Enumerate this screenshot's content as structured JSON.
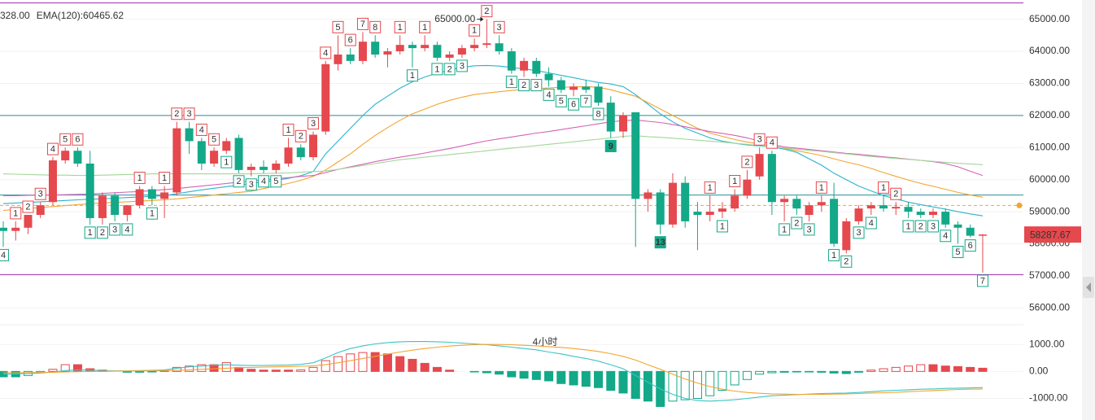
{
  "chart_data": [
    {
      "type": "candlestick",
      "open": [
        58500,
        58400,
        58500,
        58900,
        59300,
        60600,
        60900,
        60500,
        58800,
        59500,
        58900,
        59200,
        59700,
        59400,
        59600,
        61600,
        61200,
        60500,
        60900,
        61300,
        60300,
        60400,
        60300,
        60500,
        61000,
        60700,
        61500,
        63600,
        63900,
        63700,
        64300,
        63900,
        64000,
        64200,
        64100,
        64200,
        63800,
        63900,
        64100,
        64200,
        64250,
        64000,
        63400,
        63700,
        63300,
        63100,
        62800,
        62900,
        62900,
        62400,
        61500,
        62100,
        59400,
        59600,
        58600,
        59900,
        59000,
        58900,
        59000,
        59100,
        59500,
        60100,
        60800,
        59300,
        59400,
        58900,
        59200,
        59400,
        57800,
        58700,
        59100,
        59200,
        59100,
        59150,
        59000,
        58900,
        59000,
        58600,
        58500,
        58250
      ],
      "high": [
        58700,
        58700,
        58900,
        59300,
        60700,
        61000,
        61000,
        60900,
        59600,
        59600,
        59200,
        59800,
        59800,
        59800,
        61800,
        61800,
        61300,
        61000,
        61300,
        61400,
        60500,
        60600,
        60600,
        61300,
        61100,
        61500,
        63700,
        64500,
        64100,
        64600,
        64500,
        64100,
        64500,
        64300,
        64500,
        64300,
        64000,
        64200,
        64400,
        65000,
        64500,
        64100,
        63800,
        63800,
        63500,
        63200,
        63000,
        63100,
        63000,
        62600,
        62100,
        62100,
        59700,
        59700,
        60200,
        60100,
        59300,
        59500,
        59300,
        59700,
        60300,
        61000,
        60900,
        59500,
        59500,
        59300,
        59500,
        59900,
        58800,
        59200,
        59300,
        59500,
        59300,
        59300,
        59100,
        59100,
        59100,
        58700,
        58600,
        58300
      ],
      "low": [
        57900,
        58100,
        58300,
        58800,
        59200,
        60500,
        60400,
        58600,
        58600,
        58700,
        58700,
        59100,
        59200,
        58800,
        59500,
        60800,
        60300,
        60400,
        60800,
        60200,
        60100,
        60200,
        60200,
        60400,
        60600,
        60600,
        61400,
        63400,
        63600,
        63600,
        63800,
        63500,
        63900,
        63500,
        64000,
        63700,
        63700,
        63800,
        64000,
        64100,
        63900,
        63300,
        63200,
        63200,
        62900,
        62700,
        62600,
        62700,
        62300,
        61300,
        61300,
        57900,
        59000,
        58300,
        58500,
        58500,
        57800,
        58700,
        58800,
        59000,
        59400,
        60000,
        58900,
        58700,
        58900,
        58700,
        59000,
        57900,
        57700,
        58600,
        58900,
        59000,
        58900,
        58800,
        58800,
        58800,
        58500,
        58000,
        58200,
        57100
      ],
      "close": [
        58400,
        58500,
        58900,
        59200,
        60600,
        60900,
        60500,
        58800,
        59500,
        58900,
        59200,
        59700,
        59400,
        59600,
        61600,
        61200,
        60500,
        60900,
        61200,
        60300,
        60400,
        60300,
        60500,
        61000,
        60700,
        61400,
        63600,
        63900,
        63700,
        64300,
        63900,
        64000,
        64200,
        64100,
        64200,
        63800,
        63900,
        64100,
        64200,
        64250,
        64000,
        63400,
        63700,
        63300,
        63100,
        62800,
        62900,
        62800,
        62400,
        61500,
        62000,
        59400,
        59600,
        58600,
        59900,
        58700,
        58900,
        59000,
        59100,
        59500,
        60000,
        60800,
        59300,
        59400,
        59100,
        59200,
        59300,
        58000,
        58700,
        59100,
        59200,
        59100,
        59150,
        59000,
        58900,
        59000,
        58600,
        58500,
        58250,
        58287.67
      ],
      "up_color": "#e5484d",
      "down_color": "#13a888",
      "td_sell": [
        null,
        1,
        2,
        3,
        4,
        5,
        6,
        null,
        null,
        null,
        null,
        1,
        null,
        1,
        2,
        3,
        4,
        5,
        null,
        null,
        null,
        null,
        null,
        1,
        2,
        3,
        4,
        5,
        6,
        7,
        8,
        null,
        1,
        null,
        1,
        null,
        null,
        null,
        1,
        2,
        3,
        null,
        null,
        null,
        null,
        null,
        null,
        null,
        null,
        null,
        null,
        null,
        null,
        null,
        null,
        null,
        null,
        1,
        null,
        1,
        2,
        3,
        4,
        null,
        null,
        null,
        1,
        null,
        null,
        null,
        null,
        1,
        2,
        null,
        null,
        null,
        null,
        null,
        null,
        null
      ],
      "td_buy": [
        4,
        null,
        null,
        null,
        null,
        null,
        null,
        1,
        2,
        3,
        4,
        null,
        1,
        null,
        null,
        null,
        null,
        null,
        1,
        2,
        3,
        4,
        5,
        null,
        null,
        null,
        null,
        null,
        null,
        null,
        null,
        null,
        null,
        1,
        null,
        1,
        2,
        3,
        null,
        null,
        null,
        1,
        2,
        3,
        4,
        5,
        6,
        7,
        8,
        9,
        null,
        null,
        null,
        13,
        null,
        null,
        null,
        null,
        1,
        null,
        null,
        null,
        null,
        1,
        2,
        3,
        null,
        1,
        2,
        3,
        4,
        null,
        null,
        1,
        2,
        3,
        4,
        5,
        6,
        7
      ],
      "lines": [
        {
          "name": "328.00",
          "color": "#2bb3cc",
          "values": [
            59250,
            59270,
            59290,
            59310,
            59330,
            59350,
            59370,
            59390,
            59400,
            59420,
            59440,
            59460,
            59480,
            59500,
            59560,
            59620,
            59680,
            59730,
            59780,
            59830,
            59880,
            59930,
            59980,
            60040,
            60120,
            60250,
            60800,
            61200,
            61600,
            62000,
            62350,
            62600,
            62850,
            63050,
            63200,
            63320,
            63420,
            63500,
            63550,
            63560,
            63540,
            63500,
            63450,
            63400,
            63330,
            63250,
            63180,
            63100,
            63030,
            62980,
            62900,
            62650,
            62350,
            62050,
            61800,
            61600,
            61450,
            61300,
            61200,
            61130,
            61080,
            61050,
            61020,
            60950,
            60850,
            60650,
            60450,
            60200,
            60000,
            59800,
            59650,
            59500,
            59400,
            59300,
            59220,
            59150,
            59080,
            59000,
            58930,
            58870
          ]
        },
        {
          "color": "#f2a531",
          "values": [
            59040,
            59070,
            59100,
            59130,
            59160,
            59190,
            59220,
            59250,
            59270,
            59290,
            59310,
            59330,
            59350,
            59370,
            59400,
            59440,
            59480,
            59520,
            59560,
            59600,
            59640,
            59720,
            59800,
            59880,
            59980,
            60100,
            60300,
            60550,
            60800,
            61100,
            61380,
            61620,
            61850,
            62050,
            62200,
            62350,
            62470,
            62570,
            62650,
            62700,
            62740,
            62780,
            62810,
            62840,
            62860,
            62880,
            62890,
            62900,
            62880,
            62800,
            62700,
            62600,
            62400,
            62200,
            62000,
            61800,
            61600,
            61450,
            61350,
            61250,
            61170,
            61110,
            61050,
            60980,
            60900,
            60830,
            60750,
            60650,
            60550,
            60460,
            60350,
            60220,
            60100,
            59990,
            59880,
            59790,
            59700,
            59600,
            59520,
            59450
          ]
        },
        {
          "color": "#d563b4",
          "values": [
            59500,
            59500,
            59510,
            59520,
            59520,
            59530,
            59540,
            59550,
            59570,
            59590,
            59610,
            59630,
            59660,
            59690,
            59720,
            59760,
            59800,
            59840,
            59880,
            59920,
            59960,
            59990,
            60030,
            60060,
            60100,
            60130,
            60220,
            60320,
            60400,
            60480,
            60560,
            60630,
            60700,
            60760,
            60830,
            60900,
            60970,
            61050,
            61130,
            61210,
            61270,
            61330,
            61390,
            61450,
            61500,
            61560,
            61620,
            61680,
            61740,
            61800,
            61840,
            61860,
            61820,
            61780,
            61720,
            61650,
            61570,
            61500,
            61440,
            61380,
            61300,
            61200,
            61100,
            61020,
            60980,
            60940,
            60900,
            60860,
            60820,
            60790,
            60750,
            60710,
            60680,
            60640,
            60600,
            60560,
            60500,
            60400,
            60260,
            60130
          ]
        },
        {
          "name": "EMA(120):60465.62",
          "color": "#a3d69a",
          "values": [
            60180,
            60170,
            60160,
            60150,
            60140,
            60140,
            60130,
            60130,
            60140,
            60150,
            60160,
            60170,
            60180,
            60180,
            60180,
            60180,
            60180,
            60180,
            60180,
            60180,
            60180,
            60190,
            60200,
            60210,
            60230,
            60250,
            60270,
            60320,
            60380,
            60440,
            60500,
            60560,
            60620,
            60660,
            60700,
            60740,
            60780,
            60820,
            60860,
            60900,
            60940,
            60980,
            61020,
            61060,
            61100,
            61140,
            61180,
            61220,
            61260,
            61300,
            61350,
            61370,
            61340,
            61320,
            61290,
            61260,
            61230,
            61200,
            61170,
            61130,
            61100,
            61060,
            61020,
            60990,
            60950,
            60910,
            60880,
            60840,
            60800,
            60760,
            60720,
            60690,
            60660,
            60630,
            60600,
            60570,
            60540,
            60510,
            60490,
            60465.62
          ]
        }
      ],
      "hlines": [
        {
          "value": 65507,
          "color": "#a02ca8"
        },
        {
          "value": 62000,
          "color": "#2a8f9a"
        },
        {
          "value": 59520,
          "color": "#2a8f9a"
        },
        {
          "value": 59195,
          "color": "#f2a531",
          "dashed": true
        },
        {
          "value": 57040,
          "color": "#a02ca8"
        }
      ],
      "annotation": {
        "label": "65000.00",
        "value": 65000
      },
      "ylim": [
        55500,
        65600
      ],
      "yticks": [
        {
          "value": 56000,
          "label": "56000.00"
        },
        {
          "value": 57000,
          "label": "57000.00"
        },
        {
          "value": 58000,
          "label": "58000.00"
        },
        {
          "value": 59000,
          "label": "59000.00"
        },
        {
          "value": 60000,
          "label": "60000.00"
        },
        {
          "value": 61000,
          "label": "61000.00"
        },
        {
          "value": 62000,
          "label": "62000.00"
        },
        {
          "value": 63000,
          "label": "63000.00"
        },
        {
          "value": 64000,
          "label": "64000.00"
        },
        {
          "value": 65000,
          "label": "65000.00"
        }
      ],
      "grid": true
    },
    {
      "type": "macd",
      "watermark": "4小时",
      "histogram": [
        -200,
        -200,
        -150,
        -50,
        80,
        250,
        250,
        100,
        50,
        0,
        -30,
        -30,
        -20,
        20,
        150,
        200,
        250,
        250,
        330,
        150,
        80,
        50,
        50,
        50,
        60,
        150,
        400,
        550,
        650,
        700,
        700,
        650,
        550,
        450,
        300,
        150,
        50,
        0,
        -20,
        -50,
        -100,
        -200,
        -250,
        -300,
        -350,
        -450,
        -500,
        -550,
        -600,
        -700,
        -800,
        -1000,
        -1100,
        -1300,
        -1100,
        -1050,
        -1000,
        -900,
        -700,
        -500,
        -300,
        -100,
        -50,
        -30,
        -20,
        -20,
        -30,
        -60,
        -80,
        -30,
        50,
        100,
        150,
        200,
        250,
        250,
        200,
        180,
        150,
        120
      ],
      "up_color": "#e5484d",
      "down_color": "#13a888",
      "lines": [
        {
          "color": "#3cc4c4",
          "values": [
            -100,
            -90,
            -80,
            -60,
            -20,
            30,
            60,
            50,
            30,
            20,
            20,
            30,
            40,
            60,
            120,
            170,
            200,
            230,
            250,
            230,
            220,
            220,
            230,
            240,
            260,
            320,
            500,
            700,
            850,
            950,
            1020,
            1070,
            1100,
            1110,
            1110,
            1100,
            1080,
            1050,
            1020,
            990,
            950,
            900,
            850,
            800,
            720,
            650,
            560,
            480,
            380,
            250,
            100,
            -150,
            -400,
            -650,
            -850,
            -1000,
            -1080,
            -1100,
            -1080,
            -1050,
            -1000,
            -950,
            -900,
            -880,
            -860,
            -840,
            -820,
            -810,
            -800,
            -780,
            -750,
            -720,
            -700,
            -680,
            -660,
            -650,
            -630,
            -620,
            -610,
            -600
          ]
        },
        {
          "color": "#f2a531",
          "values": [
            -50,
            -50,
            -45,
            -40,
            -35,
            -20,
            -10,
            0,
            5,
            10,
            15,
            20,
            25,
            30,
            40,
            60,
            80,
            100,
            120,
            140,
            150,
            160,
            170,
            180,
            190,
            210,
            250,
            320,
            400,
            480,
            560,
            640,
            720,
            790,
            850,
            900,
            940,
            970,
            990,
            1000,
            1000,
            990,
            970,
            950,
            920,
            890,
            850,
            800,
            740,
            660,
            560,
            420,
            250,
            80,
            -100,
            -280,
            -430,
            -560,
            -660,
            -730,
            -780,
            -810,
            -830,
            -840,
            -850,
            -850,
            -850,
            -840,
            -830,
            -820,
            -800,
            -790,
            -770,
            -750,
            -730,
            -710,
            -690,
            -670,
            -660,
            -650
          ]
        }
      ],
      "ylim": [
        -1800,
        1700
      ],
      "yticks": [
        {
          "value": -1000,
          "label": "-1000.00"
        },
        {
          "value": 0,
          "label": "0.00"
        },
        {
          "value": 1000,
          "label": "1000.00"
        }
      ],
      "grid": true
    }
  ]
}
